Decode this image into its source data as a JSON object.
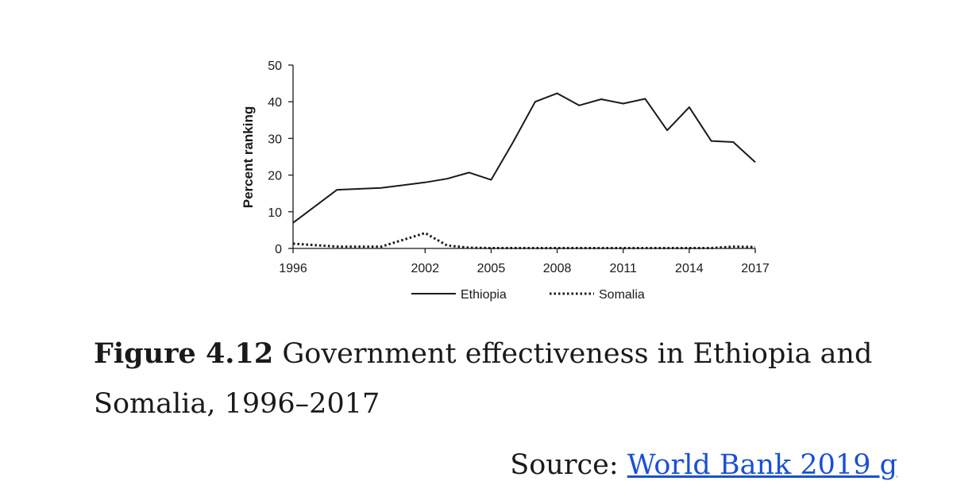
{
  "chart_data": {
    "type": "line",
    "title": "",
    "xlabel": "",
    "ylabel": "Percent ranking",
    "ylim": [
      0,
      50
    ],
    "yticks": [
      0,
      10,
      20,
      30,
      40,
      50
    ],
    "xlim": [
      1996,
      2017
    ],
    "xticks": [
      1996,
      2002,
      2005,
      2008,
      2011,
      2014,
      2017
    ],
    "x": [
      1996,
      1998,
      2000,
      2002,
      2003,
      2004,
      2005,
      2006,
      2007,
      2008,
      2009,
      2010,
      2011,
      2012,
      2013,
      2014,
      2015,
      2016,
      2017
    ],
    "series": [
      {
        "name": "Ethiopia",
        "style": "solid",
        "values": [
          7,
          16,
          16.5,
          18,
          19,
          20.7,
          18.7,
          29,
          40,
          42.3,
          39,
          40.7,
          39.5,
          40.8,
          32.2,
          38.5,
          29.3,
          29,
          23.5
        ]
      },
      {
        "name": "Somalia",
        "style": "dotted",
        "values": [
          1.3,
          0.5,
          0.5,
          4.2,
          0.8,
          0.2,
          0.1,
          0.1,
          0.1,
          0.1,
          0.1,
          0.1,
          0.1,
          0.1,
          0.1,
          0.1,
          0.1,
          0.5,
          0.4
        ]
      }
    ],
    "legend": {
      "position": "bottom"
    },
    "grid": false
  },
  "caption": {
    "label": "Figure 4.12",
    "text": " Government effectiveness in Ethiopia and Somalia, 1996–2017"
  },
  "source": {
    "prefix": "Source: ",
    "link_text": "World Bank 2019 g"
  },
  "colors": {
    "ink": "#1a1a1a",
    "link": "#1a4fd6"
  }
}
